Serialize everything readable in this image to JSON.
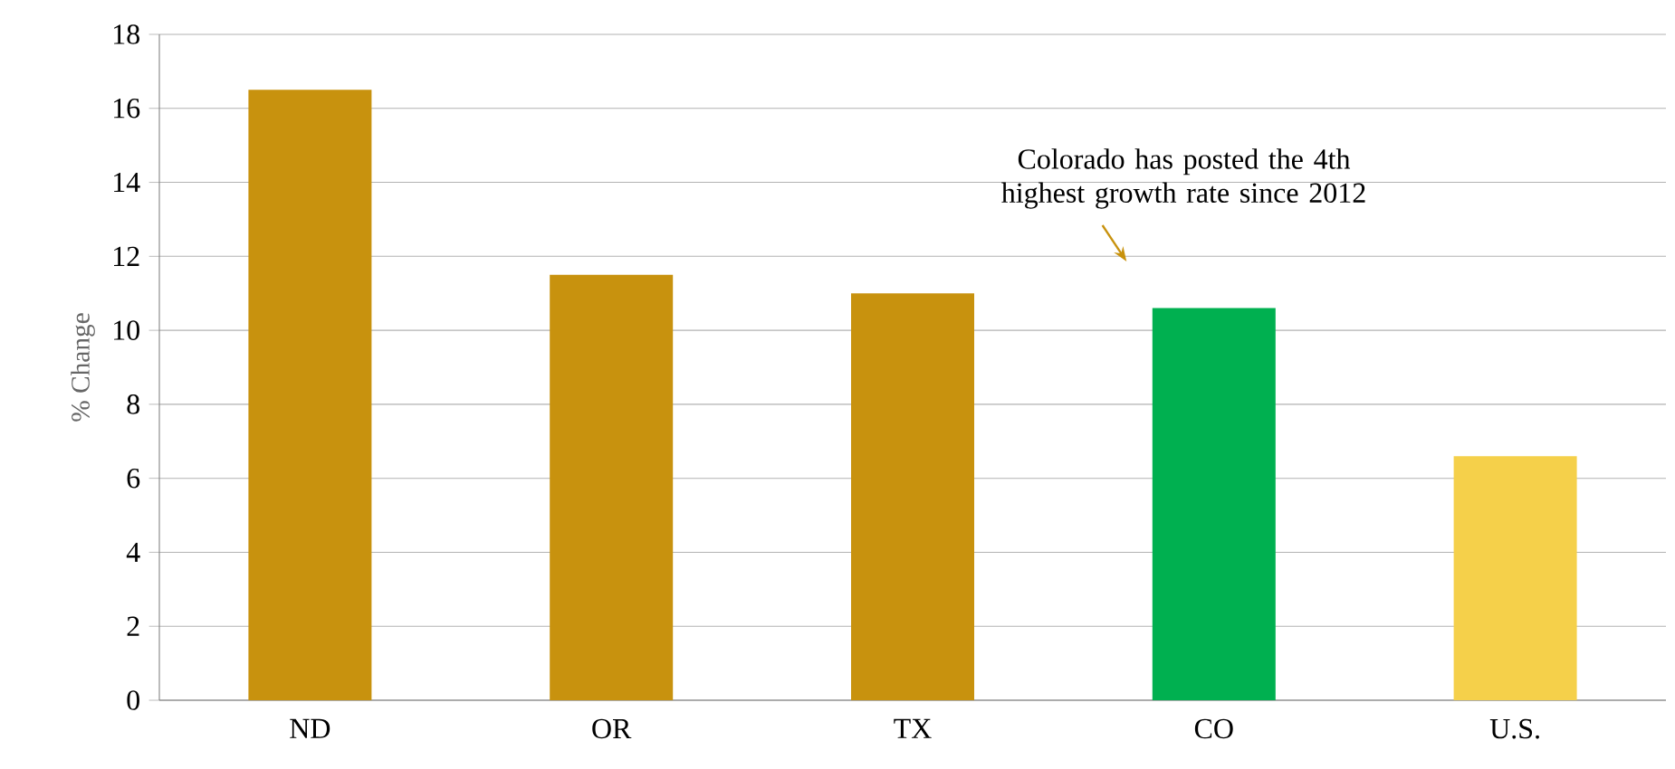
{
  "chart_data": {
    "type": "bar",
    "ylabel": "% Change",
    "categories": [
      "ND",
      "OR",
      "TX",
      "CO",
      "U.S."
    ],
    "values": [
      16.5,
      11.5,
      11.0,
      10.6,
      6.6
    ],
    "colors": [
      "#c8920e",
      "#c8920e",
      "#c8920e",
      "#00b050",
      "#f5d04a"
    ],
    "ylim": [
      0,
      18
    ],
    "yticks": [
      0,
      2,
      4,
      6,
      8,
      10,
      12,
      14,
      16,
      18
    ],
    "grid": "y",
    "annotations": [
      "Colorado has posted the 4th highest growth rate since 2012"
    ]
  }
}
